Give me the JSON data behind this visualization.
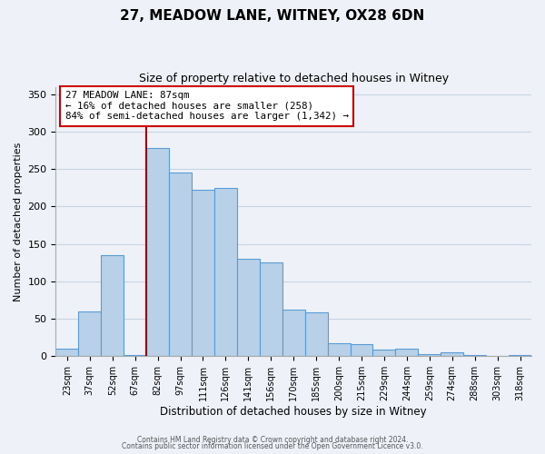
{
  "title": "27, MEADOW LANE, WITNEY, OX28 6DN",
  "subtitle": "Size of property relative to detached houses in Witney",
  "xlabel": "Distribution of detached houses by size in Witney",
  "ylabel": "Number of detached properties",
  "categories": [
    "23sqm",
    "37sqm",
    "52sqm",
    "67sqm",
    "82sqm",
    "97sqm",
    "111sqm",
    "126sqm",
    "141sqm",
    "156sqm",
    "170sqm",
    "185sqm",
    "200sqm",
    "215sqm",
    "229sqm",
    "244sqm",
    "259sqm",
    "274sqm",
    "288sqm",
    "303sqm",
    "318sqm"
  ],
  "values": [
    10,
    60,
    135,
    2,
    278,
    245,
    222,
    225,
    130,
    125,
    62,
    59,
    18,
    16,
    9,
    10,
    3,
    5,
    2,
    1,
    2
  ],
  "bar_color": "#b8d0e8",
  "bar_edge_color": "#5b9bd5",
  "marker_line_color": "#aa0000",
  "annotation_text": "27 MEADOW LANE: 87sqm\n← 16% of detached houses are smaller (258)\n84% of semi-detached houses are larger (1,342) →",
  "annotation_box_color": "white",
  "annotation_box_edge_color": "#cc0000",
  "ylim": [
    0,
    360
  ],
  "yticks": [
    0,
    50,
    100,
    150,
    200,
    250,
    300,
    350
  ],
  "grid_color": "#c8d4e4",
  "background_color": "#eef2f8",
  "footer1": "Contains HM Land Registry data © Crown copyright and database right 2024.",
  "footer2": "Contains public sector information licensed under the Open Government Licence v3.0."
}
